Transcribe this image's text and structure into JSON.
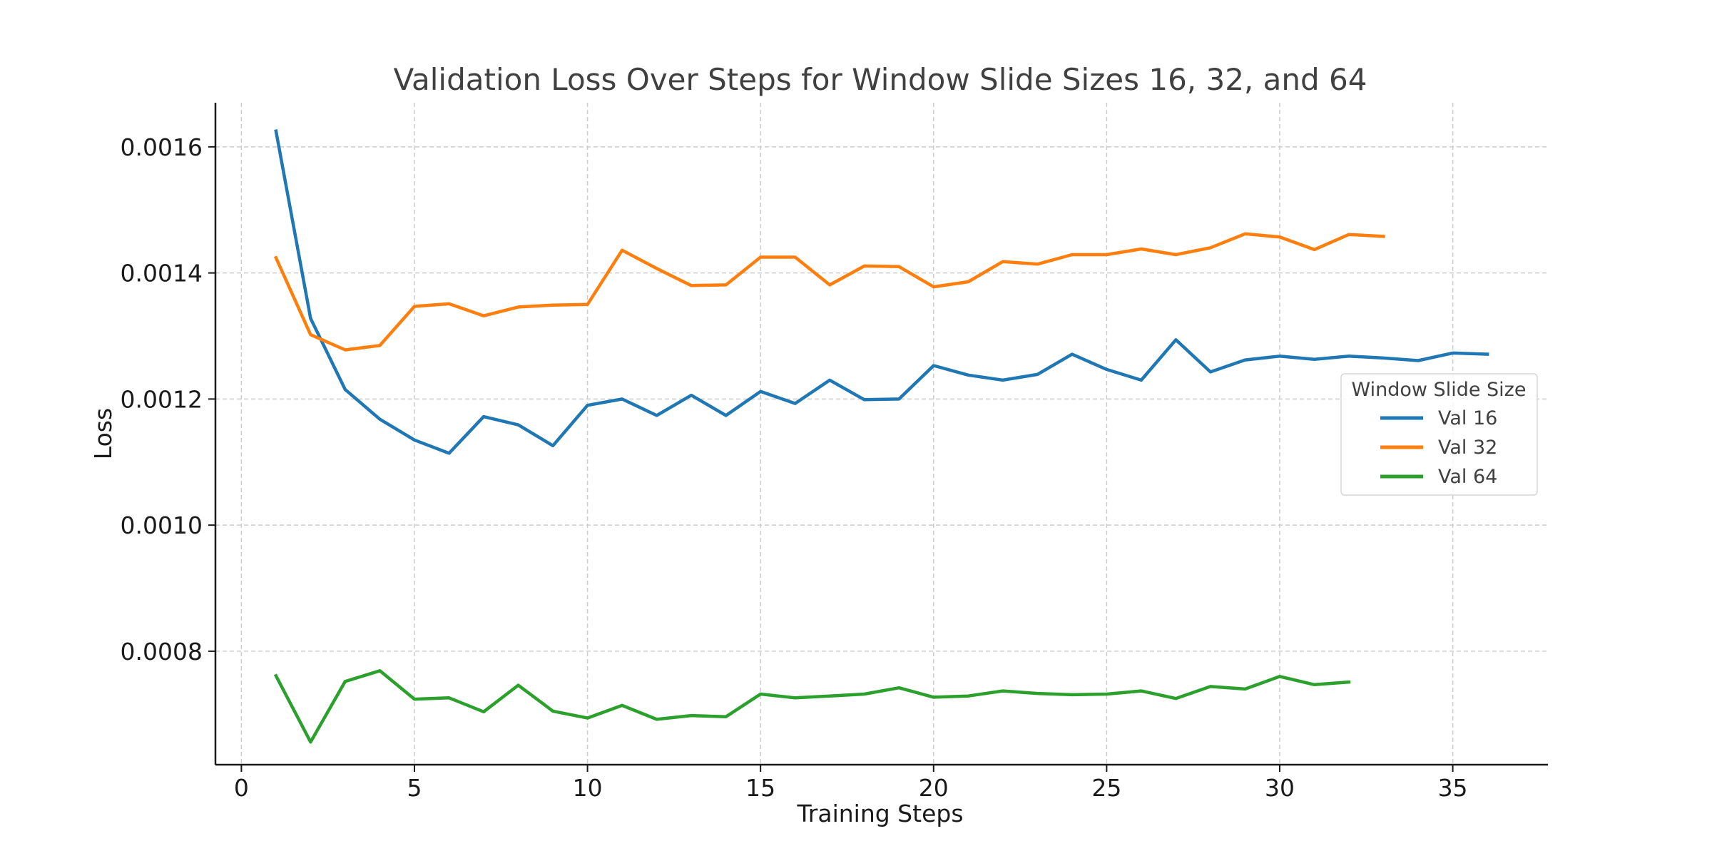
{
  "chart_data": {
    "type": "line",
    "title": "Validation Loss Over Steps for Window Slide Sizes 16, 32, and 64",
    "xlabel": "Training Steps",
    "ylabel": "Loss",
    "xlim": [
      -0.75,
      37.75
    ],
    "ylim": [
      0.00062,
      0.00167
    ],
    "xticks": [
      0,
      5,
      10,
      15,
      20,
      25,
      30,
      35
    ],
    "yticks": [
      0.0008,
      0.001,
      0.0012,
      0.0014,
      0.0016
    ],
    "ytick_labels": [
      "0.0008",
      "0.0010",
      "0.0012",
      "0.0014",
      "0.0016"
    ],
    "grid": true,
    "legend": {
      "title": "Window Slide Size",
      "placement": "center-right"
    },
    "series": [
      {
        "name": "Val 16",
        "color": "#1f77b4",
        "x": [
          1,
          2,
          3,
          4,
          5,
          6,
          7,
          8,
          9,
          10,
          11,
          12,
          13,
          14,
          15,
          16,
          17,
          18,
          19,
          20,
          21,
          22,
          23,
          24,
          25,
          26,
          27,
          28,
          29,
          30,
          31,
          32,
          33,
          34,
          35,
          36
        ],
        "values": [
          0.001625,
          0.001328,
          0.001215,
          0.001168,
          0.001135,
          0.001114,
          0.001172,
          0.001159,
          0.001126,
          0.00119,
          0.0012,
          0.001174,
          0.001206,
          0.001174,
          0.001212,
          0.001193,
          0.00123,
          0.001199,
          0.0012,
          0.001253,
          0.001238,
          0.00123,
          0.001239,
          0.001271,
          0.001247,
          0.00123,
          0.001294,
          0.001243,
          0.001262,
          0.001268,
          0.001263,
          0.001268,
          0.001265,
          0.001261,
          0.001273,
          0.001271
        ]
      },
      {
        "name": "Val 32",
        "color": "#ff7f0e",
        "x": [
          1,
          2,
          3,
          4,
          5,
          6,
          7,
          8,
          9,
          10,
          11,
          12,
          13,
          14,
          15,
          16,
          17,
          18,
          19,
          20,
          21,
          22,
          23,
          24,
          25,
          26,
          27,
          28,
          29,
          30,
          31,
          32,
          33
        ],
        "values": [
          0.001424,
          0.001302,
          0.001278,
          0.001285,
          0.001347,
          0.001351,
          0.001332,
          0.001346,
          0.001349,
          0.00135,
          0.001436,
          0.001407,
          0.00138,
          0.001381,
          0.001425,
          0.001425,
          0.001381,
          0.001411,
          0.00141,
          0.001378,
          0.001386,
          0.001418,
          0.001414,
          0.001429,
          0.001429,
          0.001438,
          0.001429,
          0.00144,
          0.001462,
          0.001457,
          0.001437,
          0.001461,
          0.001458
        ]
      },
      {
        "name": "Val 64",
        "color": "#2ca02c",
        "x": [
          1,
          2,
          3,
          4,
          5,
          6,
          7,
          8,
          9,
          10,
          11,
          12,
          13,
          14,
          15,
          16,
          17,
          18,
          19,
          20,
          21,
          22,
          23,
          24,
          25,
          26,
          27,
          28,
          29,
          30,
          31,
          32
        ],
        "values": [
          0.000761,
          0.000656,
          0.000752,
          0.000769,
          0.000724,
          0.000726,
          0.000704,
          0.000746,
          0.000705,
          0.000694,
          0.000714,
          0.000692,
          0.000698,
          0.000696,
          0.000732,
          0.000726,
          0.000729,
          0.000732,
          0.000742,
          0.000727,
          0.000729,
          0.000737,
          0.000733,
          0.000731,
          0.000732,
          0.000737,
          0.000725,
          0.000744,
          0.00074,
          0.00076,
          0.000747,
          0.000751
        ]
      }
    ]
  }
}
